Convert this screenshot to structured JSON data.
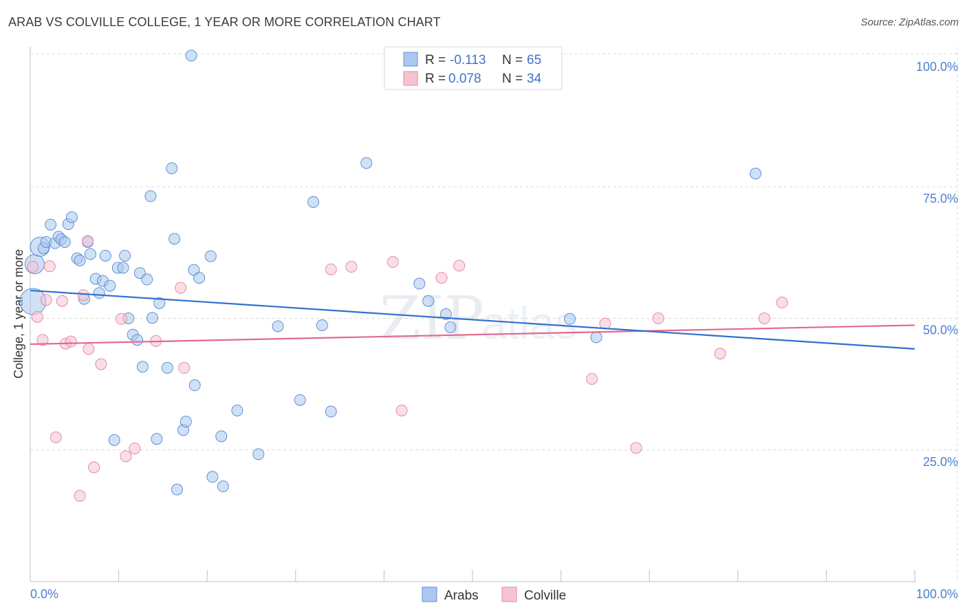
{
  "title": "ARAB VS COLVILLE COLLEGE, 1 YEAR OR MORE CORRELATION CHART",
  "source": "Source: ZipAtlas.com",
  "watermark": {
    "zip": "ZIP",
    "atlas": "atlas"
  },
  "colors": {
    "arabs_fill": "#aac8ef",
    "arabs_stroke": "#5f8fd6",
    "arabs_line": "#2f6fcf",
    "colville_fill": "#f6c3d3",
    "colville_stroke": "#e48aa8",
    "colville_line": "#e2688f",
    "tick_text": "#4a7fd0",
    "grid": "#d9d9d9"
  },
  "legend": {
    "rows": [
      {
        "r_label": "R =",
        "r_value": "-0.113",
        "n_label": "N =",
        "n_value": "65"
      },
      {
        "r_label": "R =",
        "r_value": "0.078",
        "n_label": "N =",
        "n_value": "34"
      }
    ]
  },
  "bottom_legend": [
    "Arabs",
    "Colville"
  ],
  "chart_data": {
    "type": "scatter",
    "ylabel": "College, 1 year or more",
    "xlabel": "",
    "x_tick_labels": [
      "0.0%",
      "100.0%"
    ],
    "y_tick_labels": [
      "100.0%",
      "75.0%",
      "50.0%",
      "25.0%"
    ],
    "y_ticks": [
      100,
      75,
      50,
      25
    ],
    "xlim": [
      0,
      100
    ],
    "ylim": [
      0,
      102
    ],
    "series": [
      {
        "name": "Arabs",
        "R": -0.113,
        "N": 65,
        "trend": {
          "x0": 0,
          "y0": 55.3,
          "x1": 100,
          "y1": 44.2
        },
        "points": [
          {
            "x": 0.3,
            "y": 53.2,
            "s": 3
          },
          {
            "x": 0.5,
            "y": 60.3,
            "s": 2
          },
          {
            "x": 1.1,
            "y": 63.6,
            "s": 2
          },
          {
            "x": 1.5,
            "y": 63.3,
            "s": 1
          },
          {
            "x": 1.8,
            "y": 64.5,
            "s": 1
          },
          {
            "x": 2.3,
            "y": 67.8,
            "s": 1
          },
          {
            "x": 2.8,
            "y": 64.3,
            "s": 1
          },
          {
            "x": 3.2,
            "y": 65.5,
            "s": 1
          },
          {
            "x": 3.5,
            "y": 65.0,
            "s": 1
          },
          {
            "x": 3.9,
            "y": 64.5,
            "s": 1
          },
          {
            "x": 4.3,
            "y": 67.9,
            "s": 1
          },
          {
            "x": 4.7,
            "y": 69.2,
            "s": 1
          },
          {
            "x": 5.3,
            "y": 61.4,
            "s": 1
          },
          {
            "x": 5.6,
            "y": 61.0,
            "s": 1
          },
          {
            "x": 6.1,
            "y": 53.7,
            "s": 1
          },
          {
            "x": 6.5,
            "y": 64.5,
            "s": 1
          },
          {
            "x": 6.8,
            "y": 62.2,
            "s": 1
          },
          {
            "x": 7.4,
            "y": 57.5,
            "s": 1
          },
          {
            "x": 7.8,
            "y": 54.8,
            "s": 1
          },
          {
            "x": 8.2,
            "y": 57.1,
            "s": 1
          },
          {
            "x": 8.5,
            "y": 61.9,
            "s": 1
          },
          {
            "x": 9.0,
            "y": 56.2,
            "s": 1
          },
          {
            "x": 9.5,
            "y": 26.9,
            "s": 1
          },
          {
            "x": 9.9,
            "y": 59.6,
            "s": 1
          },
          {
            "x": 10.5,
            "y": 59.6,
            "s": 1
          },
          {
            "x": 10.7,
            "y": 61.9,
            "s": 1
          },
          {
            "x": 11.1,
            "y": 50.0,
            "s": 1
          },
          {
            "x": 11.6,
            "y": 46.9,
            "s": 1
          },
          {
            "x": 12.1,
            "y": 45.9,
            "s": 1
          },
          {
            "x": 12.4,
            "y": 58.6,
            "s": 1
          },
          {
            "x": 12.7,
            "y": 40.8,
            "s": 1
          },
          {
            "x": 13.2,
            "y": 57.4,
            "s": 1
          },
          {
            "x": 13.6,
            "y": 73.2,
            "s": 1
          },
          {
            "x": 13.8,
            "y": 50.1,
            "s": 1
          },
          {
            "x": 14.3,
            "y": 27.1,
            "s": 1
          },
          {
            "x": 14.6,
            "y": 52.9,
            "s": 1
          },
          {
            "x": 15.5,
            "y": 40.6,
            "s": 1
          },
          {
            "x": 16.0,
            "y": 78.5,
            "s": 1
          },
          {
            "x": 16.3,
            "y": 65.1,
            "s": 1
          },
          {
            "x": 16.6,
            "y": 17.5,
            "s": 1
          },
          {
            "x": 17.3,
            "y": 28.8,
            "s": 1
          },
          {
            "x": 17.6,
            "y": 30.4,
            "s": 1
          },
          {
            "x": 18.2,
            "y": 99.9,
            "s": 1
          },
          {
            "x": 18.5,
            "y": 59.2,
            "s": 1
          },
          {
            "x": 18.6,
            "y": 37.3,
            "s": 1
          },
          {
            "x": 19.1,
            "y": 57.7,
            "s": 1
          },
          {
            "x": 20.4,
            "y": 61.8,
            "s": 1
          },
          {
            "x": 20.6,
            "y": 19.9,
            "s": 1
          },
          {
            "x": 21.6,
            "y": 27.6,
            "s": 1
          },
          {
            "x": 21.8,
            "y": 18.1,
            "s": 1
          },
          {
            "x": 23.4,
            "y": 32.5,
            "s": 1
          },
          {
            "x": 25.8,
            "y": 24.2,
            "s": 1
          },
          {
            "x": 28.0,
            "y": 48.5,
            "s": 1
          },
          {
            "x": 30.5,
            "y": 34.5,
            "s": 1
          },
          {
            "x": 32.0,
            "y": 72.1,
            "s": 1
          },
          {
            "x": 33.0,
            "y": 48.7,
            "s": 1
          },
          {
            "x": 34.0,
            "y": 32.3,
            "s": 1
          },
          {
            "x": 38.0,
            "y": 79.5,
            "s": 1
          },
          {
            "x": 44.0,
            "y": 56.6,
            "s": 1
          },
          {
            "x": 45.0,
            "y": 53.3,
            "s": 1
          },
          {
            "x": 47.0,
            "y": 50.8,
            "s": 1
          },
          {
            "x": 47.5,
            "y": 48.3,
            "s": 1
          },
          {
            "x": 61.0,
            "y": 49.9,
            "s": 1
          },
          {
            "x": 64.0,
            "y": 46.4,
            "s": 1
          },
          {
            "x": 82.0,
            "y": 77.5,
            "s": 1
          }
        ]
      },
      {
        "name": "Colville",
        "R": 0.078,
        "N": 34,
        "trend": {
          "x0": 0,
          "y0": 45.1,
          "x1": 100,
          "y1": 48.7
        },
        "points": [
          {
            "x": 0.3,
            "y": 59.8,
            "s": 1
          },
          {
            "x": 0.8,
            "y": 50.3,
            "s": 1
          },
          {
            "x": 1.4,
            "y": 45.9,
            "s": 1
          },
          {
            "x": 1.8,
            "y": 53.5,
            "s": 1
          },
          {
            "x": 2.2,
            "y": 59.9,
            "s": 1
          },
          {
            "x": 2.9,
            "y": 27.4,
            "s": 1
          },
          {
            "x": 3.6,
            "y": 53.3,
            "s": 1
          },
          {
            "x": 4.0,
            "y": 45.2,
            "s": 1
          },
          {
            "x": 4.6,
            "y": 45.6,
            "s": 1
          },
          {
            "x": 5.6,
            "y": 16.3,
            "s": 1
          },
          {
            "x": 6.0,
            "y": 54.4,
            "s": 1
          },
          {
            "x": 6.5,
            "y": 64.7,
            "s": 1
          },
          {
            "x": 6.6,
            "y": 44.2,
            "s": 1
          },
          {
            "x": 7.2,
            "y": 21.7,
            "s": 1
          },
          {
            "x": 8.0,
            "y": 41.3,
            "s": 1
          },
          {
            "x": 10.3,
            "y": 49.9,
            "s": 1
          },
          {
            "x": 10.8,
            "y": 23.8,
            "s": 1
          },
          {
            "x": 11.8,
            "y": 25.3,
            "s": 1
          },
          {
            "x": 14.2,
            "y": 45.7,
            "s": 1
          },
          {
            "x": 17.0,
            "y": 55.8,
            "s": 1
          },
          {
            "x": 17.4,
            "y": 40.6,
            "s": 1
          },
          {
            "x": 34.0,
            "y": 59.3,
            "s": 1
          },
          {
            "x": 36.3,
            "y": 59.8,
            "s": 1
          },
          {
            "x": 41.0,
            "y": 60.7,
            "s": 1
          },
          {
            "x": 42.0,
            "y": 32.5,
            "s": 1
          },
          {
            "x": 46.5,
            "y": 57.7,
            "s": 1
          },
          {
            "x": 48.5,
            "y": 60.0,
            "s": 1
          },
          {
            "x": 63.5,
            "y": 38.5,
            "s": 1
          },
          {
            "x": 65.0,
            "y": 49.0,
            "s": 1
          },
          {
            "x": 68.5,
            "y": 25.4,
            "s": 1
          },
          {
            "x": 71.0,
            "y": 50.0,
            "s": 1
          },
          {
            "x": 78.0,
            "y": 43.3,
            "s": 1
          },
          {
            "x": 83.0,
            "y": 50.0,
            "s": 1
          },
          {
            "x": 85.0,
            "y": 53.0,
            "s": 1
          }
        ]
      }
    ]
  }
}
